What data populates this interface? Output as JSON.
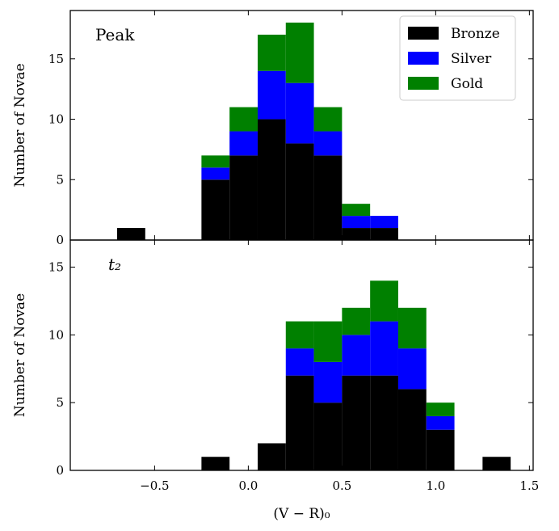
{
  "chart_data": {
    "type": "bar",
    "stacked": true,
    "xlabel": "(V − R)₀",
    "ylabel": "Number of Novae",
    "xlim": [
      -0.95,
      1.52
    ],
    "x_ticks": [
      -0.5,
      0.0,
      0.5,
      1.0,
      1.5
    ],
    "x_tick_labels": [
      "−0.5",
      "0.0",
      "0.5",
      "1.0",
      "1.5"
    ],
    "bin_width": 0.15,
    "legend": {
      "position": "top-right",
      "entries": [
        {
          "name": "Bronze",
          "color": "#000000"
        },
        {
          "name": "Silver",
          "color": "#0000ff"
        },
        {
          "name": "Gold",
          "color": "#008000"
        }
      ]
    },
    "panels": [
      {
        "label": "Peak",
        "ylim": [
          0,
          19
        ],
        "y_ticks": [
          0,
          5,
          10,
          15
        ],
        "bin_lefts": [
          -0.7,
          -0.25,
          -0.1,
          0.05,
          0.2,
          0.35,
          0.5,
          0.65
        ],
        "series": [
          {
            "name": "Bronze",
            "values": [
              1,
              5,
              7,
              10,
              8,
              7,
              1,
              1
            ]
          },
          {
            "name": "Silver",
            "values": [
              0,
              1,
              2,
              4,
              5,
              2,
              1,
              1
            ]
          },
          {
            "name": "Gold",
            "values": [
              0,
              1,
              2,
              3,
              5,
              2,
              1,
              0
            ]
          }
        ]
      },
      {
        "label": "t₂",
        "ylim": [
          0,
          17
        ],
        "y_ticks": [
          0,
          5,
          10,
          15
        ],
        "bin_lefts": [
          -0.25,
          0.05,
          0.2,
          0.35,
          0.5,
          0.65,
          0.8,
          0.95,
          1.25
        ],
        "series": [
          {
            "name": "Bronze",
            "values": [
              1,
              2,
              7,
              5,
              7,
              7,
              6,
              3,
              1
            ]
          },
          {
            "name": "Silver",
            "values": [
              0,
              0,
              2,
              3,
              3,
              4,
              3,
              1,
              0
            ]
          },
          {
            "name": "Gold",
            "values": [
              0,
              0,
              2,
              3,
              2,
              3,
              3,
              1,
              0
            ]
          }
        ]
      }
    ]
  }
}
